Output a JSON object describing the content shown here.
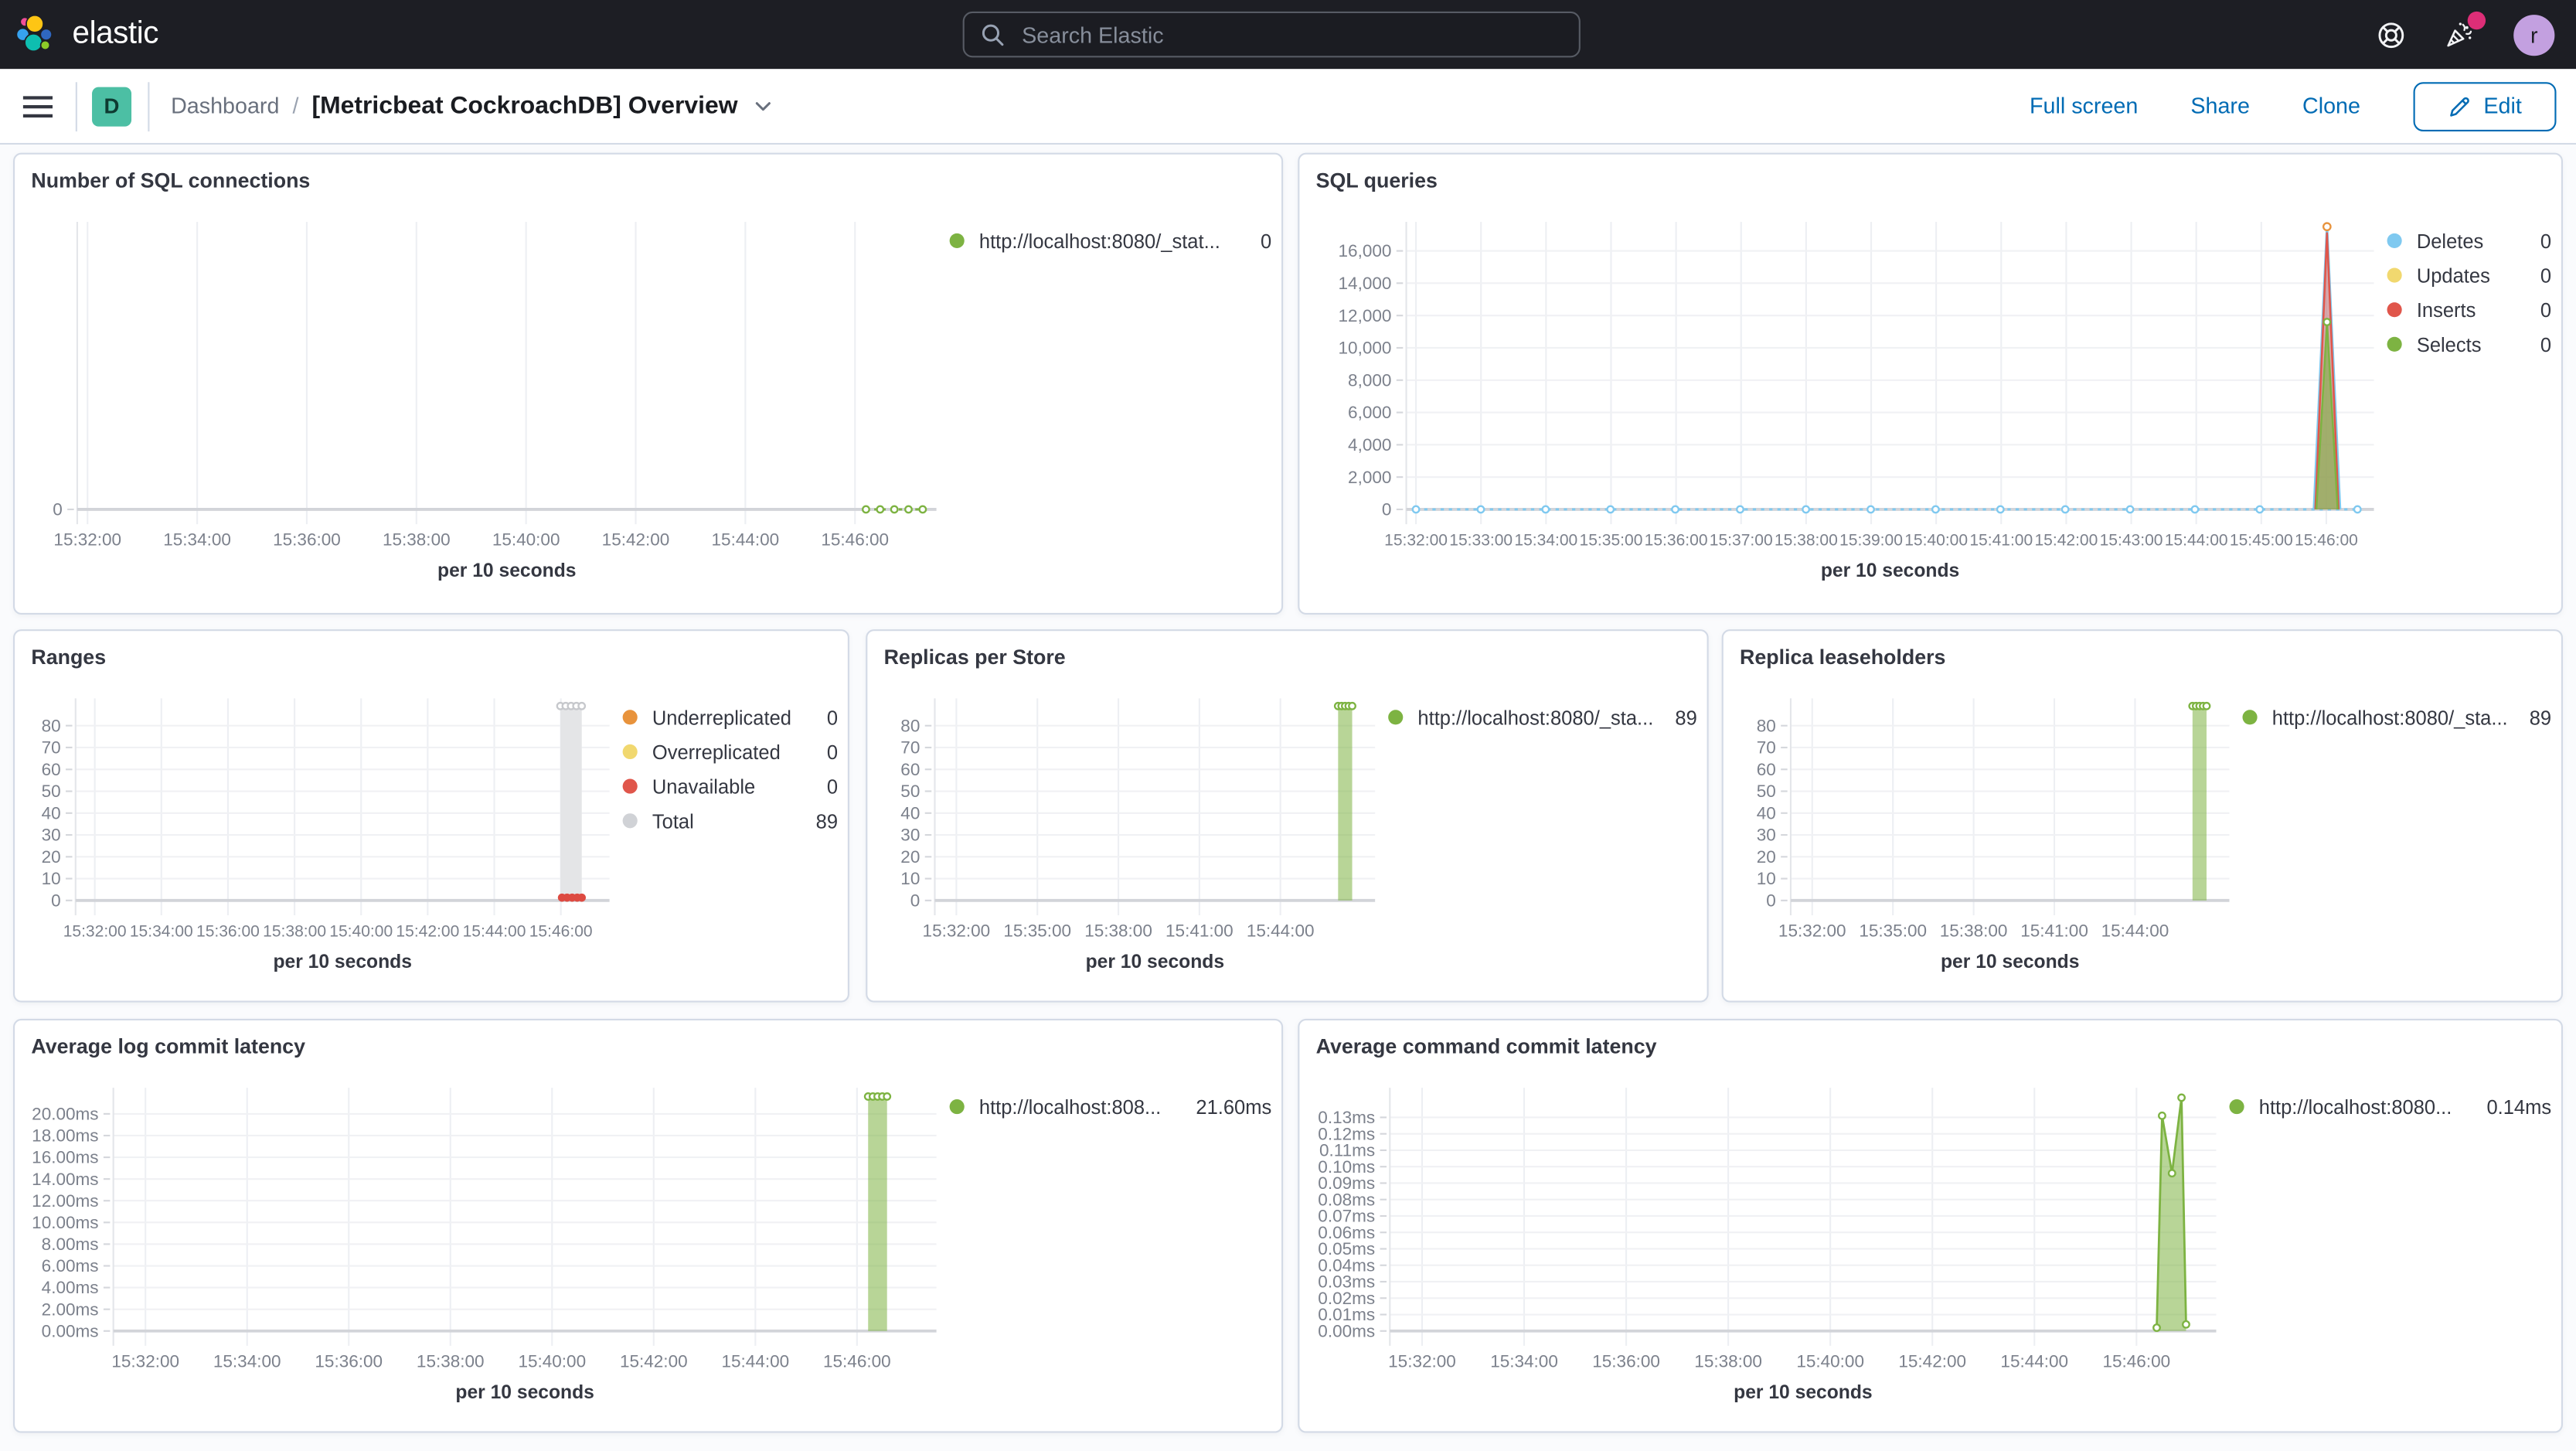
{
  "header": {
    "brand": "elastic",
    "search_placeholder": "Search Elastic",
    "avatar_initial": "r"
  },
  "icons": {
    "search": "magnifier",
    "help": "life-ring",
    "notifications": "party-popper",
    "menu": "hamburger",
    "title_menu": "chevron-down",
    "edit": "pencil"
  },
  "toolbar": {
    "space_badge": "D",
    "breadcrumb_root": "Dashboard",
    "breadcrumb_sep": "/",
    "breadcrumb_current": "[Metricbeat CockroachDB] Overview",
    "full_screen": "Full screen",
    "share": "Share",
    "clone": "Clone",
    "edit": "Edit"
  },
  "colors": {
    "header_bg": "#1D1E24",
    "accent_blue": "#006BB4",
    "badge_teal": "#4CBFA4",
    "avatar_purple": "#C3A0E0",
    "notification_pink": "#DD2E77",
    "series_green": "#7DB342",
    "series_blue": "#7FC9F0",
    "series_yellow": "#F1D86F",
    "series_red": "#E0564B",
    "series_orange": "#E8933C",
    "series_gray": "#D0D2D6",
    "panel_border": "#D3DAE6"
  },
  "chart_data": [
    {
      "type": "line",
      "title": "Number of SQL connections",
      "x_axis_title": "per 10 seconds",
      "x_ticks": [
        "15:32:00",
        "15:34:00",
        "15:36:00",
        "15:38:00",
        "15:40:00",
        "15:42:00",
        "15:44:00",
        "15:46:00"
      ],
      "x_tick_start": 0.012,
      "x_tick_step": 0.1276,
      "ylim": [
        0,
        7.5
      ],
      "grid": true,
      "legend_position": "right",
      "y_ticks": [
        {
          "v": 0,
          "label": "0"
        }
      ],
      "series": [
        {
          "name": "http://localhost:8080/_stat...",
          "type": "line",
          "color": "#7DB342",
          "dash": "2,3",
          "width": 1.4,
          "markers": "open",
          "marker_r": 2,
          "points": [
            [
              0.918,
              0
            ],
            [
              0.9345,
              0
            ],
            [
              0.951,
              0
            ],
            [
              0.9675,
              0
            ],
            [
              0.984,
              0
            ]
          ]
        }
      ],
      "legend": [
        {
          "label": "http://localhost:8080/_stat...",
          "value": "0",
          "color": "#7DB342"
        }
      ]
    },
    {
      "type": "area",
      "title": "SQL queries",
      "x_axis_title": "per 10 seconds",
      "x_ticks": [
        "15:32:00",
        "15:33:00",
        "15:34:00",
        "15:35:00",
        "15:36:00",
        "15:37:00",
        "15:38:00",
        "15:39:00",
        "15:40:00",
        "15:41:00",
        "15:42:00",
        "15:43:00",
        "15:44:00",
        "15:45:00",
        "15:46:00"
      ],
      "x_tick_start": 0.01,
      "x_tick_step": 0.0672,
      "ylim": [
        0,
        17800
      ],
      "grid": true,
      "legend_position": "right",
      "y_ticks": [
        {
          "v": 0,
          "label": "0"
        },
        {
          "v": 2000,
          "label": "2,000"
        },
        {
          "v": 4000,
          "label": "4,000"
        },
        {
          "v": 6000,
          "label": "6,000"
        },
        {
          "v": 8000,
          "label": "8,000"
        },
        {
          "v": 10000,
          "label": "10,000"
        },
        {
          "v": 12000,
          "label": "12,000"
        },
        {
          "v": 14000,
          "label": "14,000"
        },
        {
          "v": 16000,
          "label": "16,000"
        }
      ],
      "series": [
        {
          "name": "Deletes",
          "type": "line",
          "color": "#7FC9F0",
          "dash": "2,3",
          "width": 1.4,
          "points": [
            [
              0.01,
              0
            ],
            [
              0.077,
              0
            ],
            [
              0.144,
              0
            ],
            [
              0.211,
              0
            ],
            [
              0.278,
              0
            ],
            [
              0.345,
              0
            ],
            [
              0.413,
              0
            ],
            [
              0.48,
              0
            ],
            [
              0.547,
              0
            ],
            [
              0.614,
              0
            ],
            [
              0.681,
              0
            ],
            [
              0.748,
              0
            ],
            [
              0.815,
              0
            ],
            [
              0.882,
              0
            ],
            [
              0.983,
              0
            ]
          ]
        },
        {
          "name": "Deletes spike",
          "type": "area",
          "color": "#7FC9F0",
          "fill": "rgba(127,201,240,0.35)",
          "width": 1.5,
          "points": [
            [
              0.938,
              0
            ],
            [
              0.9515,
              17500
            ],
            [
              0.965,
              0
            ]
          ]
        },
        {
          "name": "Inserts spike",
          "type": "area",
          "color": "#E0564B",
          "fill": "rgba(224,86,75,0.45)",
          "width": 1.2,
          "points": [
            [
              0.9395,
              0
            ],
            [
              0.9515,
              17100
            ],
            [
              0.9635,
              0
            ]
          ]
        },
        {
          "name": "Selects spike",
          "type": "area",
          "color": "#7DB342",
          "fill": "rgba(125,179,66,0.6)",
          "width": 1.2,
          "points": [
            [
              0.9405,
              0
            ],
            [
              0.9515,
              11600
            ],
            [
              0.9625,
              0
            ]
          ]
        },
        {
          "name": "Deletes markers",
          "type": "dots",
          "style": "open",
          "color": "#7FC9F0",
          "r": 2,
          "points": [
            [
              0.01,
              0
            ],
            [
              0.077,
              0
            ],
            [
              0.144,
              0
            ],
            [
              0.211,
              0
            ],
            [
              0.278,
              0
            ],
            [
              0.345,
              0
            ],
            [
              0.413,
              0
            ],
            [
              0.48,
              0
            ],
            [
              0.547,
              0
            ],
            [
              0.614,
              0
            ],
            [
              0.681,
              0
            ],
            [
              0.748,
              0
            ],
            [
              0.815,
              0
            ],
            [
              0.882,
              0
            ],
            [
              0.983,
              0
            ]
          ]
        },
        {
          "name": "Selects peak marker",
          "type": "dots",
          "style": "open",
          "color": "#7DB342",
          "r": 2,
          "points": [
            [
              0.9515,
              11600
            ]
          ]
        },
        {
          "name": "top peak marker",
          "type": "dots",
          "style": "open",
          "color": "#E8933C",
          "r": 2.2,
          "points": [
            [
              0.9515,
              17500
            ]
          ]
        }
      ],
      "legend": [
        {
          "label": "Deletes",
          "value": "0",
          "color": "#7FC9F0"
        },
        {
          "label": "Updates",
          "value": "0",
          "color": "#F1D86F"
        },
        {
          "label": "Inserts",
          "value": "0",
          "color": "#E0564B"
        },
        {
          "label": "Selects",
          "value": "0",
          "color": "#7DB342"
        }
      ]
    },
    {
      "type": "bar",
      "title": "Ranges",
      "x_axis_title": "per 10 seconds",
      "x_ticks": [
        "15:32:00",
        "15:34:00",
        "15:36:00",
        "15:38:00",
        "15:40:00",
        "15:42:00",
        "15:44:00",
        "15:46:00"
      ],
      "x_tick_start": 0.036,
      "x_tick_step": 0.1247,
      "ylim": [
        0,
        92.5
      ],
      "grid": true,
      "legend_position": "right",
      "y_ticks": [
        {
          "v": 0,
          "label": "0"
        },
        {
          "v": 10,
          "label": "10"
        },
        {
          "v": 20,
          "label": "20"
        },
        {
          "v": 30,
          "label": "30"
        },
        {
          "v": 40,
          "label": "40"
        },
        {
          "v": 50,
          "label": "50"
        },
        {
          "v": 60,
          "label": "60"
        },
        {
          "v": 70,
          "label": "70"
        },
        {
          "v": 80,
          "label": "80"
        }
      ],
      "series": [
        {
          "name": "Total",
          "type": "column",
          "x0": 0.908,
          "x1": 0.948,
          "v": 89,
          "fill": "#E4E5E7",
          "markers": "open",
          "marker_color": "#C6C8CC"
        },
        {
          "name": "Unavailable",
          "type": "dots",
          "style": "filled",
          "color": "#DD4A41",
          "r": 2.5,
          "points": [
            [
              0.911,
              1.3
            ],
            [
              0.9205,
              1.3
            ],
            [
              0.93,
              1.3
            ],
            [
              0.9395,
              1.3
            ],
            [
              0.948,
              1.3
            ]
          ]
        }
      ],
      "legend": [
        {
          "label": "Underreplicated",
          "value": "0",
          "color": "#E8933C"
        },
        {
          "label": "Overreplicated",
          "value": "0",
          "color": "#F1D86F"
        },
        {
          "label": "Unavailable",
          "value": "0",
          "color": "#E0564B"
        },
        {
          "label": "Total",
          "value": "89",
          "color": "#D0D2D6"
        }
      ]
    },
    {
      "type": "bar",
      "title": "Replicas per Store",
      "x_axis_title": "per 10 seconds",
      "x_ticks": [
        "15:32:00",
        "15:35:00",
        "15:38:00",
        "15:41:00",
        "15:44:00"
      ],
      "x_tick_start": 0.049,
      "x_tick_step": 0.184,
      "ylim": [
        0,
        92.5
      ],
      "grid": true,
      "legend_position": "right",
      "y_ticks": [
        {
          "v": 0,
          "label": "0"
        },
        {
          "v": 10,
          "label": "10"
        },
        {
          "v": 20,
          "label": "20"
        },
        {
          "v": 30,
          "label": "30"
        },
        {
          "v": 40,
          "label": "40"
        },
        {
          "v": 50,
          "label": "50"
        },
        {
          "v": 60,
          "label": "60"
        },
        {
          "v": 70,
          "label": "70"
        },
        {
          "v": 80,
          "label": "80"
        }
      ],
      "series": [
        {
          "name": "http://localhost:8080/_sta...",
          "type": "column",
          "x0": 0.916,
          "x1": 0.948,
          "v": 89,
          "fill": "rgba(125,179,66,0.55)",
          "markers": "open",
          "marker_color": "#7DB342"
        }
      ],
      "legend": [
        {
          "label": "http://localhost:8080/_sta...",
          "value": "89",
          "color": "#7DB342"
        }
      ]
    },
    {
      "type": "bar",
      "title": "Replica leaseholders",
      "x_axis_title": "per 10 seconds",
      "x_ticks": [
        "15:32:00",
        "15:35:00",
        "15:38:00",
        "15:41:00",
        "15:44:00"
      ],
      "x_tick_start": 0.049,
      "x_tick_step": 0.184,
      "ylim": [
        0,
        92.5
      ],
      "grid": true,
      "legend_position": "right",
      "y_ticks": [
        {
          "v": 0,
          "label": "0"
        },
        {
          "v": 10,
          "label": "10"
        },
        {
          "v": 20,
          "label": "20"
        },
        {
          "v": 30,
          "label": "30"
        },
        {
          "v": 40,
          "label": "40"
        },
        {
          "v": 50,
          "label": "50"
        },
        {
          "v": 60,
          "label": "60"
        },
        {
          "v": 70,
          "label": "70"
        },
        {
          "v": 80,
          "label": "80"
        }
      ],
      "series": [
        {
          "name": "http://localhost:8080/_sta...",
          "type": "column",
          "x0": 0.916,
          "x1": 0.948,
          "v": 89,
          "fill": "rgba(125,179,66,0.55)",
          "markers": "open",
          "marker_color": "#7DB342"
        }
      ],
      "legend": [
        {
          "label": "http://localhost:8080/_sta...",
          "value": "89",
          "color": "#7DB342"
        }
      ]
    },
    {
      "type": "bar",
      "title": "Average log commit latency",
      "x_axis_title": "per 10 seconds",
      "x_ticks": [
        "15:32:00",
        "15:34:00",
        "15:36:00",
        "15:38:00",
        "15:40:00",
        "15:42:00",
        "15:44:00",
        "15:46:00"
      ],
      "x_tick_start": 0.039,
      "x_tick_step": 0.1235,
      "ylim": [
        0,
        22.4
      ],
      "grid": true,
      "legend_position": "right",
      "y_ticks": [
        {
          "v": 0,
          "label": "0.00ms"
        },
        {
          "v": 2,
          "label": "2.00ms"
        },
        {
          "v": 4,
          "label": "4.00ms"
        },
        {
          "v": 6,
          "label": "6.00ms"
        },
        {
          "v": 8,
          "label": "8.00ms"
        },
        {
          "v": 10,
          "label": "10.00ms"
        },
        {
          "v": 12,
          "label": "12.00ms"
        },
        {
          "v": 14,
          "label": "14.00ms"
        },
        {
          "v": 16,
          "label": "16.00ms"
        },
        {
          "v": 18,
          "label": "18.00ms"
        },
        {
          "v": 20,
          "label": "20.00ms"
        }
      ],
      "series": [
        {
          "name": "http://localhost:808...",
          "type": "column",
          "x0": 0.917,
          "x1": 0.94,
          "v": 21.6,
          "fill": "rgba(125,179,66,0.55)",
          "markers": "open",
          "marker_color": "#7DB342"
        }
      ],
      "legend": [
        {
          "label": "http://localhost:808...",
          "value": "21.60ms",
          "color": "#7DB342"
        }
      ]
    },
    {
      "type": "area",
      "title": "Average command commit latency",
      "x_axis_title": "per 10 seconds",
      "x_ticks": [
        "15:32:00",
        "15:34:00",
        "15:36:00",
        "15:38:00",
        "15:40:00",
        "15:42:00",
        "15:44:00",
        "15:46:00"
      ],
      "x_tick_start": 0.039,
      "x_tick_step": 0.1235,
      "ylim": [
        0,
        0.148
      ],
      "grid": true,
      "legend_position": "right",
      "y_ticks": [
        {
          "v": 0,
          "label": "0.00ms"
        },
        {
          "v": 0.01,
          "label": "0.01ms"
        },
        {
          "v": 0.02,
          "label": "0.02ms"
        },
        {
          "v": 0.03,
          "label": "0.03ms"
        },
        {
          "v": 0.04,
          "label": "0.04ms"
        },
        {
          "v": 0.05,
          "label": "0.05ms"
        },
        {
          "v": 0.06,
          "label": "0.06ms"
        },
        {
          "v": 0.07,
          "label": "0.07ms"
        },
        {
          "v": 0.08,
          "label": "0.08ms"
        },
        {
          "v": 0.09,
          "label": "0.09ms"
        },
        {
          "v": 0.1,
          "label": "0.10ms"
        },
        {
          "v": 0.11,
          "label": "0.11ms"
        },
        {
          "v": 0.12,
          "label": "0.12ms"
        },
        {
          "v": 0.13,
          "label": "0.13ms"
        }
      ],
      "series": [
        {
          "name": "http://localhost:8080...",
          "type": "area",
          "color": "#7DB342",
          "fill": "rgba(125,179,66,0.55)",
          "width": 1.3,
          "markers": "open",
          "marker_r": 2,
          "points": [
            [
              0.928,
              0.002
            ],
            [
              0.9345,
              0.131
            ],
            [
              0.9465,
              0.096
            ],
            [
              0.958,
              0.142
            ],
            [
              0.9635,
              0.004
            ]
          ]
        }
      ],
      "legend": [
        {
          "label": "http://localhost:8080...",
          "value": "0.14ms",
          "color": "#7DB342"
        }
      ]
    }
  ]
}
